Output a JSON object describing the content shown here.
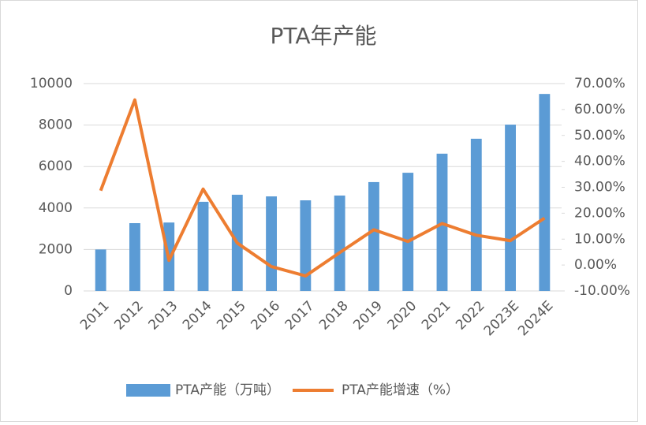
{
  "chart_data": {
    "type": "bar-line",
    "title": "PTA年产能",
    "categories": [
      "2011",
      "2012",
      "2013",
      "2014",
      "2015",
      "2016",
      "2017",
      "2018",
      "2019",
      "2020",
      "2021",
      "2022",
      "2023E",
      "2024E"
    ],
    "series": [
      {
        "name": "PTA产能（万吨）",
        "type": "bar",
        "color": "#5b9bd5",
        "values": [
          2000,
          3270,
          3300,
          4300,
          4640,
          4560,
          4370,
          4600,
          5250,
          5700,
          6620,
          7340,
          8020,
          9500
        ]
      },
      {
        "name": "PTA产能增速（%）",
        "type": "line",
        "axis": "y2",
        "color": "#ed7d31",
        "values": [
          28.7,
          63.7,
          1.8,
          29.3,
          8.5,
          -0.6,
          -4.2,
          4.8,
          13.6,
          9.1,
          16.0,
          11.5,
          9.4,
          18.1
        ]
      }
    ],
    "ylim": [
      0,
      10000
    ],
    "yticks": [
      0,
      2000,
      4000,
      6000,
      8000,
      10000
    ],
    "y2lim": [
      -10,
      70
    ],
    "y2ticks": [
      {
        "value": -10,
        "label": "-10.00%"
      },
      {
        "value": 0,
        "label": "0.00%"
      },
      {
        "value": 10,
        "label": "10.00%"
      },
      {
        "value": 20,
        "label": "20.00%"
      },
      {
        "value": 30,
        "label": "30.00%"
      },
      {
        "value": 40,
        "label": "40.00%"
      },
      {
        "value": 50,
        "label": "50.00%"
      },
      {
        "value": 60,
        "label": "60.00%"
      },
      {
        "value": 70,
        "label": "70.00%"
      }
    ],
    "grid": true
  }
}
